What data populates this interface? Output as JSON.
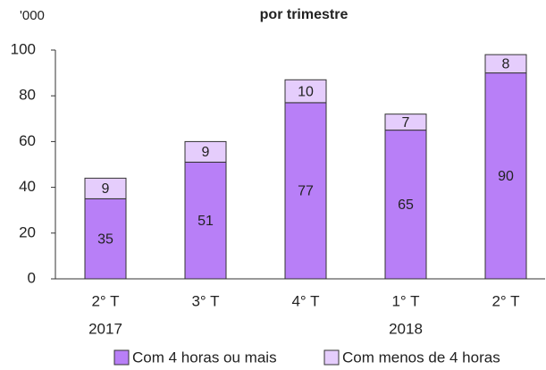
{
  "chart_data": {
    "type": "stacked_bar",
    "title": "por trimestre",
    "y_unit_label": "'000",
    "categories": [
      "2° T",
      "3° T",
      "4° T",
      "1° T",
      "2° T"
    ],
    "x_group_labels": [
      "2017",
      null,
      null,
      "2018",
      null
    ],
    "series": [
      {
        "name": "Com 4 horas ou mais",
        "color": "#b87ff7",
        "values": [
          35,
          51,
          77,
          65,
          90
        ]
      },
      {
        "name": "Com menos de 4 horas",
        "color": "#e5cdfc",
        "values": [
          9,
          9,
          10,
          7,
          8
        ]
      }
    ],
    "ylim": [
      0,
      100
    ],
    "yticks": [
      0,
      20,
      40,
      60,
      80,
      100
    ],
    "legend": "bottom"
  }
}
